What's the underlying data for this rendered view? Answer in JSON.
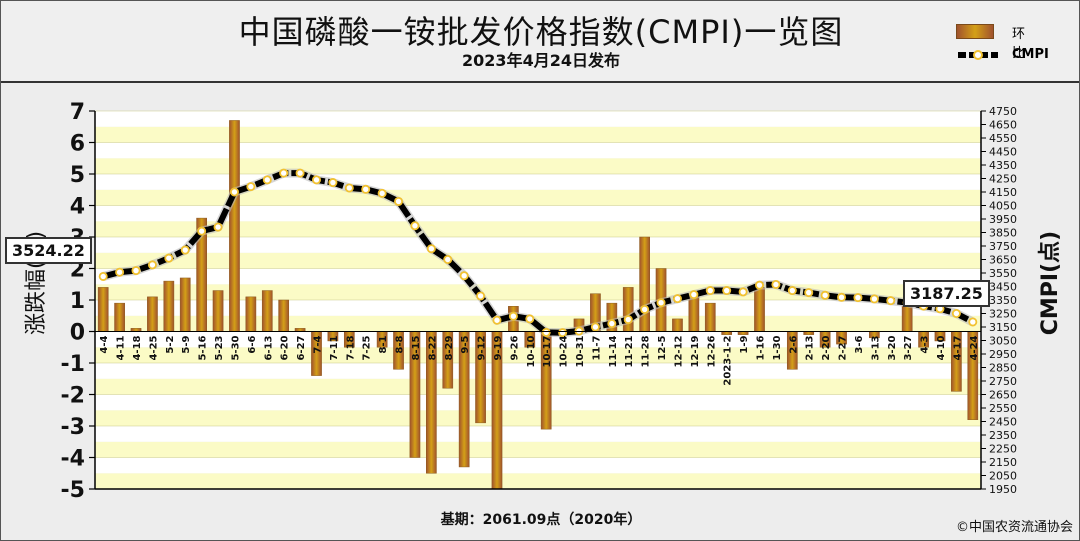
{
  "header": {
    "title": "中国磷酸一铵批发价格指数(CMPI)一览图",
    "subtitle": "2023年4月24日发布"
  },
  "legend": {
    "bar_label": "环比",
    "line_label": "CMPI"
  },
  "callouts": {
    "start_value": "3524.22",
    "end_value": "3187.25"
  },
  "footer": {
    "base": "基期：2061.09点（2020年）",
    "copyright": "©中国农资流通协会"
  },
  "colors": {
    "bar": "#d4a017",
    "bar_dark": "#a0522d",
    "line": "#000000",
    "marker": "#f2c230",
    "band_yellow": "#fbfbc6",
    "band_white": "#ffffff"
  },
  "chart_data": {
    "type": "bar",
    "categories": [
      "4-4",
      "4-11",
      "4-18",
      "4-25",
      "5-2",
      "5-9",
      "5-16",
      "5-23",
      "5-30",
      "6-6",
      "6-13",
      "6-20",
      "6-27",
      "7-4",
      "7-11",
      "7-18",
      "7-25",
      "8-1",
      "8-8",
      "8-15",
      "8-22",
      "8-29",
      "9-5",
      "9-12",
      "9-19",
      "9-26",
      "10-10",
      "10-17",
      "10-24",
      "10-31",
      "11-7",
      "11-14",
      "11-21",
      "11-28",
      "12-5",
      "12-12",
      "12-19",
      "12-26",
      "2023-1-2",
      "1-9",
      "1-16",
      "1-30",
      "2-6",
      "2-13",
      "2-20",
      "2-27",
      "3-6",
      "3-13",
      "3-20",
      "3-27",
      "4-3",
      "4-10",
      "4-17",
      "4-24"
    ],
    "series": [
      {
        "name": "环比",
        "type": "bar",
        "values": [
          1.4,
          0.9,
          0.1,
          1.1,
          1.6,
          1.7,
          3.6,
          1.3,
          6.7,
          1.1,
          1.3,
          1.0,
          0.1,
          -1.4,
          -0.3,
          -0.5,
          0,
          -0.5,
          -1.2,
          -4.0,
          -4.5,
          -1.8,
          -4.3,
          -2.9,
          -5.0,
          0.8,
          -0.5,
          -3.1,
          0,
          0.4,
          1.2,
          0.9,
          1.4,
          3.0,
          2.0,
          0.4,
          1.1,
          0.9,
          -0.1,
          -0.1,
          1.4,
          0,
          -1.2,
          -0.1,
          -0.5,
          -0.4,
          0,
          -0.2,
          0,
          0.8,
          -0.5,
          -0.3,
          -1.9,
          -2.8
        ]
      },
      {
        "name": "CMPI",
        "type": "line",
        "values": [
          3524.22,
          3556,
          3568,
          3610,
          3660,
          3720,
          3860,
          3890,
          4150,
          4190,
          4240,
          4290,
          4290,
          4240,
          4220,
          4180,
          4170,
          4140,
          4080,
          3900,
          3730,
          3650,
          3530,
          3380,
          3200,
          3230,
          3210,
          3110,
          3108,
          3120,
          3150,
          3175,
          3205,
          3280,
          3330,
          3360,
          3390,
          3420,
          3420,
          3410,
          3460,
          3465,
          3420,
          3405,
          3385,
          3370,
          3368,
          3358,
          3345,
          3330,
          3305,
          3285,
          3250,
          3187.25
        ]
      }
    ],
    "y_left": {
      "label": "涨跌幅(%)",
      "min": -5,
      "max": 7,
      "ticks": [
        -5,
        -4,
        -3,
        -2,
        -1,
        0,
        1,
        2,
        3,
        4,
        5,
        6,
        7
      ]
    },
    "y_right": {
      "label": "CMPI(点)",
      "min": 1950,
      "max": 4750,
      "ticks": [
        1950,
        2050,
        2150,
        2250,
        2350,
        2450,
        2550,
        2650,
        2750,
        2850,
        2950,
        3050,
        3150,
        3250,
        3350,
        3450,
        3550,
        3650,
        3750,
        3850,
        3950,
        4050,
        4150,
        4250,
        4350,
        4450,
        4550,
        4650,
        4750
      ]
    },
    "grid": true,
    "legend_position": "top-right"
  }
}
